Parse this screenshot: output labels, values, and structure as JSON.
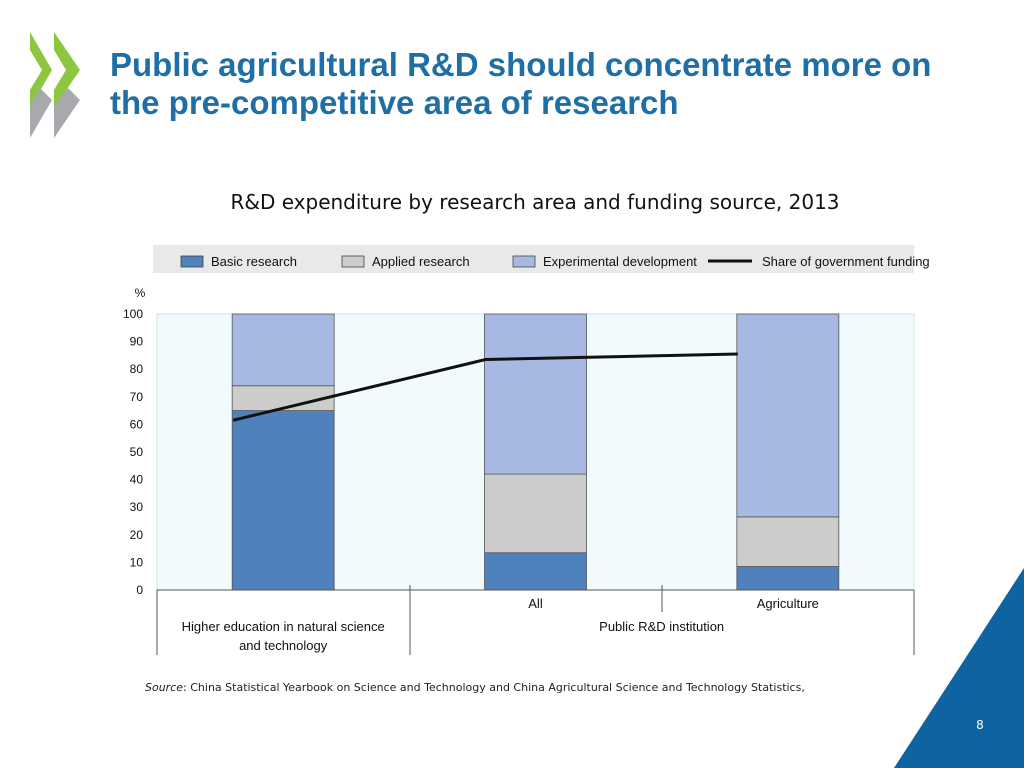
{
  "slide": {
    "title": "Public agricultural R&D should concentrate more on the pre-competitive area of research",
    "page_number": "8",
    "source_label": "Source",
    "source_text": ": China Statistical Yearbook on Science and Technology and China Agricultural Science and Technology Statistics,"
  },
  "colors": {
    "title": "#1f6fa6",
    "basic": "#4f81bd",
    "applied": "#cccccc",
    "experimental": "#a7b9e3",
    "line": "#111111",
    "plot_bg": "#f1fbfd",
    "legend_bg": "#e9e9e9",
    "corner": "#0e63a0"
  },
  "chart_data": {
    "type": "bar",
    "stacked": true,
    "title": "R&D expenditure by research area and funding source, 2013",
    "ylabel": "%",
    "ylim": [
      0,
      100
    ],
    "yticks": [
      0,
      10,
      20,
      30,
      40,
      50,
      60,
      70,
      80,
      90,
      100
    ],
    "categories": [
      "Higher education in natural science and technology",
      "All",
      "Agriculture"
    ],
    "groups": [
      {
        "label": "Higher education in natural science and technology",
        "categories": [
          0
        ]
      },
      {
        "label": "Public R&D institution",
        "categories": [
          1,
          2
        ]
      }
    ],
    "series": [
      {
        "name": "Basic research",
        "kind": "bar",
        "color_key": "basic",
        "values": [
          65,
          13.5,
          8.5
        ]
      },
      {
        "name": "Applied research",
        "kind": "bar",
        "color_key": "applied",
        "values": [
          9,
          28.5,
          18
        ]
      },
      {
        "name": "Experimental development",
        "kind": "bar",
        "color_key": "experimental",
        "values": [
          26,
          58,
          73.5
        ]
      },
      {
        "name": "Share of government funding",
        "kind": "line",
        "color_key": "line",
        "values": [
          61.5,
          83.5,
          85.5
        ]
      }
    ],
    "legend_position": "top",
    "grid": false
  }
}
